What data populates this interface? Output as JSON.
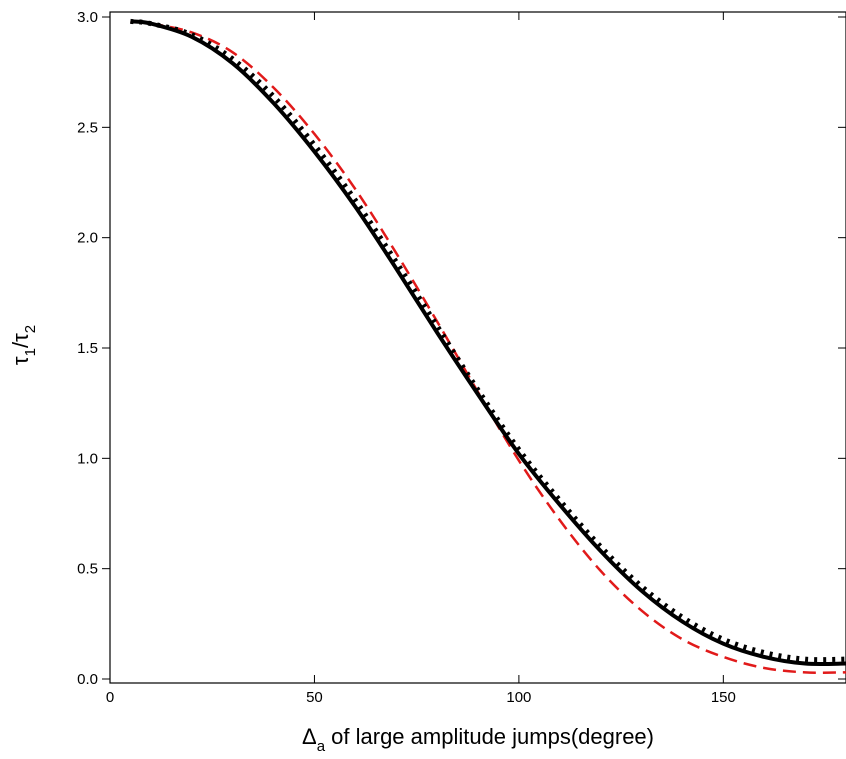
{
  "chart_data": {
    "type": "line",
    "xlabel_main": "Δ",
    "xlabel_sub": "a",
    "xlabel_rest": " of large amplitude jumps(degree)",
    "ylabel_tau1": "τ",
    "ylabel_sub1": "1",
    "ylabel_slash": "/τ",
    "ylabel_sub2": "2",
    "xlim": [
      0,
      180
    ],
    "ylim": [
      0,
      3.0
    ],
    "xticks": [
      0,
      50,
      100,
      150
    ],
    "xtick_labels": [
      "0",
      "50",
      "100",
      "150"
    ],
    "yticks": [
      0.0,
      0.5,
      1.0,
      1.5,
      2.0,
      2.5,
      3.0
    ],
    "ytick_labels": [
      "0.0",
      "0.5",
      "1.0",
      "1.5",
      "2.0",
      "2.5",
      "3.0"
    ],
    "grid": false,
    "legend": "none",
    "series": [
      {
        "style": "solid",
        "color": "#000000",
        "x": [
          5,
          10,
          20,
          30,
          40,
          50,
          60,
          70,
          80,
          90,
          100,
          110,
          120,
          130,
          140,
          150,
          160,
          170,
          180
        ],
        "y": [
          2.98,
          2.97,
          2.91,
          2.79,
          2.61,
          2.39,
          2.14,
          1.86,
          1.57,
          1.29,
          1.02,
          0.79,
          0.58,
          0.4,
          0.26,
          0.16,
          0.1,
          0.07,
          0.07
        ]
      },
      {
        "style": "dotted",
        "color": "#000000",
        "x": [
          5,
          10,
          20,
          30,
          40,
          50,
          60,
          70,
          80,
          90,
          100,
          110,
          120,
          130,
          140,
          150,
          160,
          170,
          180
        ],
        "y": [
          2.98,
          2.97,
          2.92,
          2.81,
          2.64,
          2.42,
          2.17,
          1.89,
          1.6,
          1.31,
          1.04,
          0.81,
          0.6,
          0.42,
          0.28,
          0.18,
          0.12,
          0.09,
          0.09
        ]
      },
      {
        "style": "dashed",
        "color": "#e11a1a",
        "x": [
          5,
          10,
          20,
          30,
          40,
          50,
          60,
          70,
          80,
          90,
          100,
          110,
          120,
          130,
          140,
          150,
          160,
          170,
          180
        ],
        "y": [
          2.98,
          2.97,
          2.93,
          2.84,
          2.68,
          2.47,
          2.22,
          1.93,
          1.62,
          1.3,
          0.99,
          0.72,
          0.49,
          0.31,
          0.18,
          0.1,
          0.05,
          0.03,
          0.03
        ]
      }
    ]
  }
}
